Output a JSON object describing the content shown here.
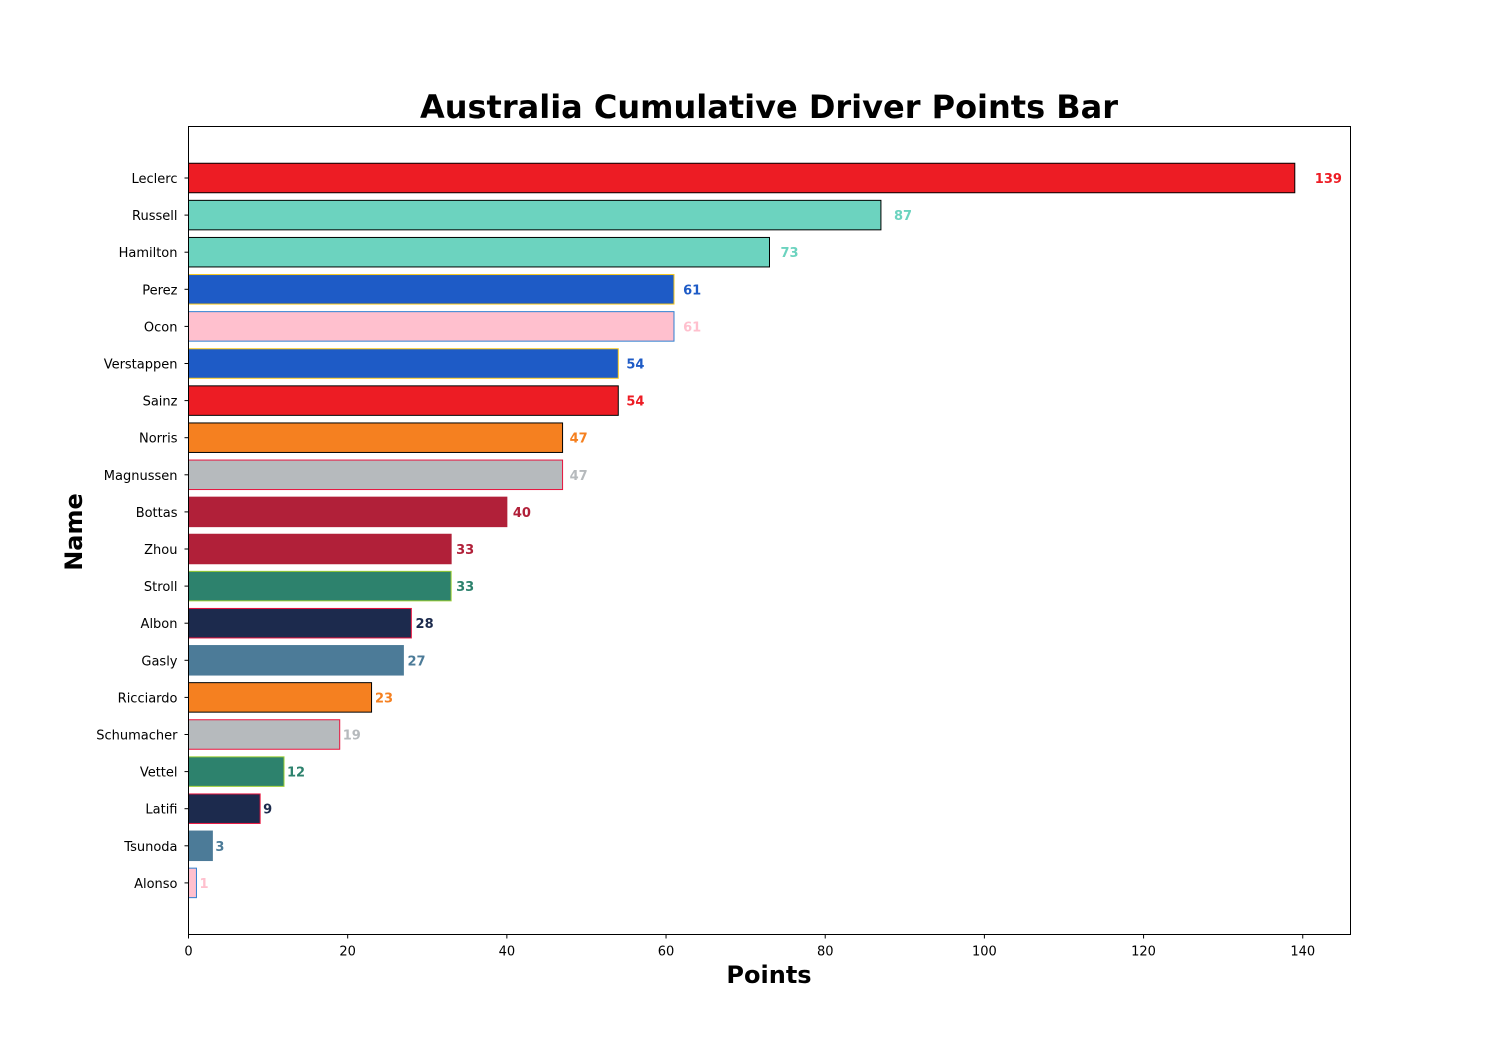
{
  "chart_data": {
    "type": "bar",
    "orientation": "horizontal",
    "title": "Australia Cumulative Driver Points Bar",
    "xlabel": "Points",
    "ylabel": "Name",
    "xlim": [
      0,
      146
    ],
    "xticks": [
      0,
      20,
      40,
      60,
      80,
      100,
      120,
      140
    ],
    "grid": false,
    "categories": [
      "Leclerc",
      "Russell",
      "Hamilton",
      "Perez",
      "Ocon",
      "Verstappen",
      "Sainz",
      "Norris",
      "Magnussen",
      "Bottas",
      "Zhou",
      "Stroll",
      "Albon",
      "Gasly",
      "Ricciardo",
      "Schumacher",
      "Vettel",
      "Latifi",
      "Tsunoda",
      "Alonso"
    ],
    "values": [
      139,
      87,
      73,
      61,
      61,
      54,
      54,
      47,
      47,
      40,
      33,
      33,
      28,
      27,
      23,
      19,
      12,
      9,
      3,
      1
    ],
    "bar_colors": [
      "#ED1C24",
      "#6CD3BF",
      "#6CD3BF",
      "#1E5BC6",
      "#FFC0CE",
      "#1E5BC6",
      "#ED1C24",
      "#F58020",
      "#B6BABD",
      "#B12039",
      "#B12039",
      "#2D826D",
      "#1C2A4D",
      "#4C7B98",
      "#F58020",
      "#B6BABD",
      "#2D826D",
      "#1C2A4D",
      "#4C7B98",
      "#FFC0CE"
    ],
    "edge_colors": [
      "#000000",
      "#000000",
      "#000000",
      "#F5C518",
      "#2F7FD0",
      "#F5C518",
      "#000000",
      "#000000",
      "#E8123C",
      "#B12039",
      "#B12039",
      "#9ACD32",
      "#E8123C",
      "#4C7B98",
      "#000000",
      "#E8123C",
      "#9ACD32",
      "#E8123C",
      "#4C7B98",
      "#2F7FD0"
    ]
  }
}
